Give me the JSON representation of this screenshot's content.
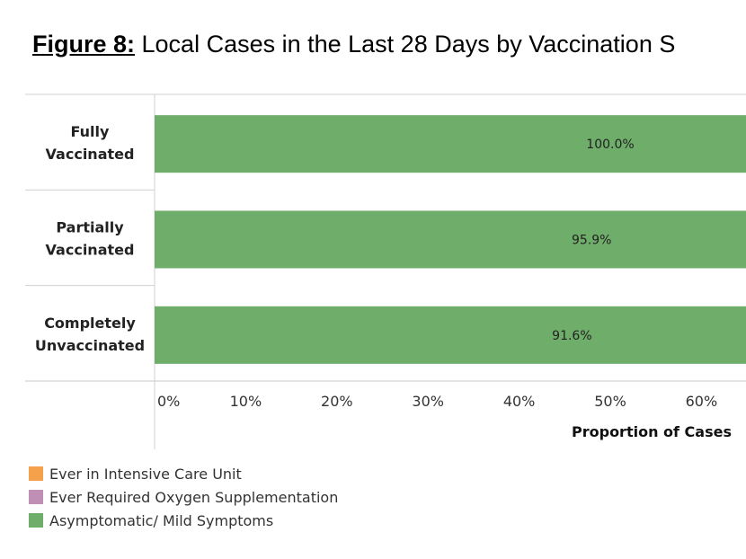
{
  "title": {
    "prefix": "Figure 8:",
    "text": " Local Cases in the Last 28 Days by Vaccination S"
  },
  "chart_data": {
    "type": "bar",
    "orientation": "horizontal",
    "stacked": true,
    "categories": [
      "Fully Vaccinated",
      "Partially Vaccinated",
      "Completely Unvaccinated"
    ],
    "series": [
      {
        "name": "Asymptomatic/ Mild Symptoms",
        "color": "#6fad6a",
        "values": [
          100.0,
          95.9,
          91.6
        ],
        "labels": [
          "100.0%",
          "95.9%",
          "91.6%"
        ]
      }
    ],
    "xlabel": "Proportion of Cases",
    "xticks": [
      "0%",
      "10%",
      "20%",
      "30%",
      "40%",
      "50%",
      "60%"
    ],
    "xlim": [
      0,
      65
    ],
    "legend": [
      {
        "label": "Ever in Intensive Care Unit",
        "color": "#f5a04a"
      },
      {
        "label": "Ever Required Oxygen Supplementation",
        "color": "#c08fb5"
      },
      {
        "label": "Asymptomatic/ Mild Symptoms",
        "color": "#6fad6a"
      }
    ],
    "legend_position": "bottom-left",
    "grid": false
  }
}
